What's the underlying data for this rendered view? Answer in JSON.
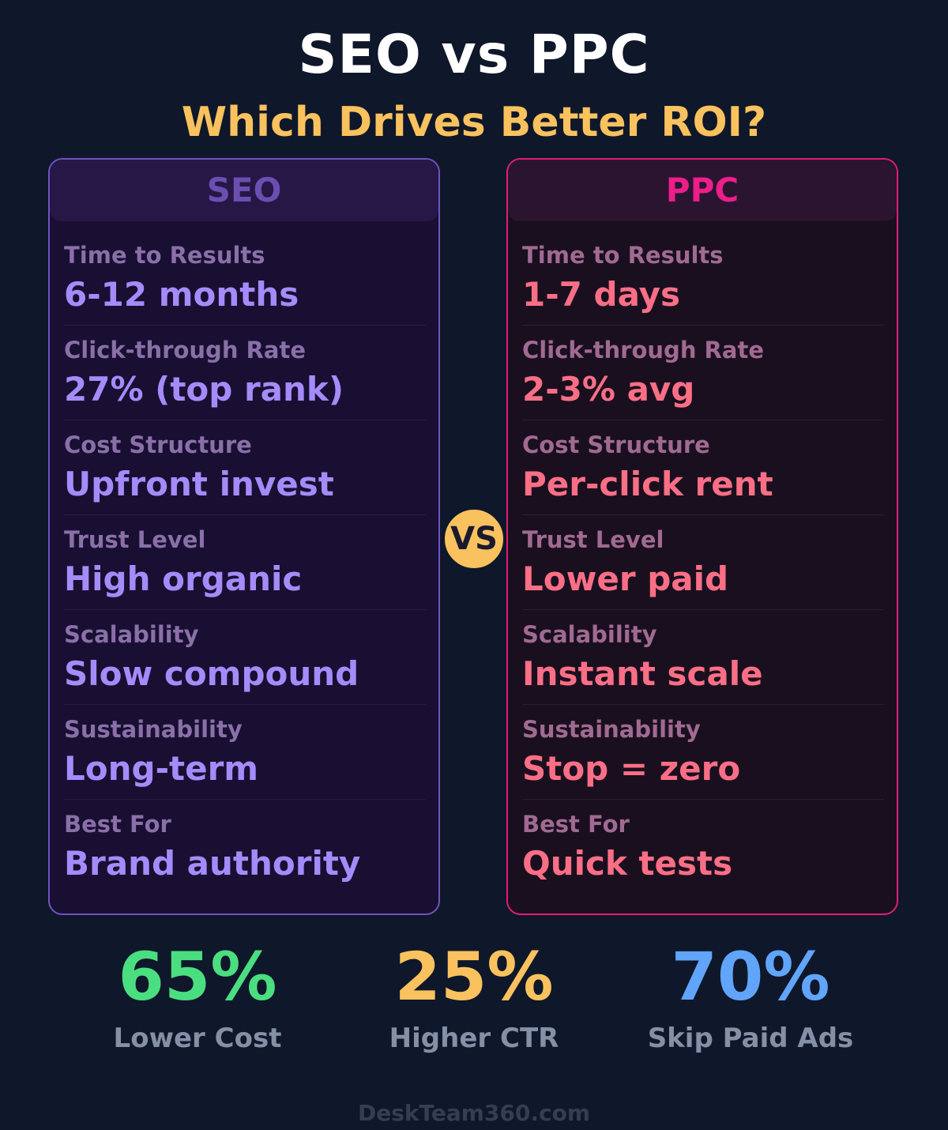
{
  "header": {
    "title": "SEO vs PPC",
    "subtitle": "Which Drives Better ROI?"
  },
  "seo": {
    "heading": "SEO",
    "rows": [
      {
        "label": "Time to Results",
        "value": "6-12 months"
      },
      {
        "label": "Click-through Rate",
        "value": "27% (top rank)"
      },
      {
        "label": "Cost Structure",
        "value": "Upfront invest"
      },
      {
        "label": "Trust Level",
        "value": "High organic"
      },
      {
        "label": "Scalability",
        "value": "Slow compound"
      },
      {
        "label": "Sustainability",
        "value": "Long-term"
      },
      {
        "label": "Best For",
        "value": "Brand authority"
      }
    ]
  },
  "ppc": {
    "heading": "PPC",
    "rows": [
      {
        "label": "Time to Results",
        "value": "1-7 days"
      },
      {
        "label": "Click-through Rate",
        "value": "2-3% avg"
      },
      {
        "label": "Cost Structure",
        "value": "Per-click rent"
      },
      {
        "label": "Trust Level",
        "value": "Lower paid"
      },
      {
        "label": "Scalability",
        "value": "Instant scale"
      },
      {
        "label": "Sustainability",
        "value": "Stop = zero"
      },
      {
        "label": "Best For",
        "value": "Quick tests"
      }
    ]
  },
  "vs_label": "VS",
  "stats": [
    {
      "value": "65%",
      "label": "Lower Cost",
      "color": "#4ade80"
    },
    {
      "value": "25%",
      "label": "Higher CTR",
      "color": "#f9c25e"
    },
    {
      "value": "70%",
      "label": "Skip Paid Ads",
      "color": "#60a5fa"
    }
  ],
  "footer": "DeskTeam360.com",
  "colors": {
    "background": "#0f172a",
    "seo_accent": "#a58bfa",
    "ppc_accent": "#fb6f86",
    "vs_badge": "#f9c25e"
  }
}
